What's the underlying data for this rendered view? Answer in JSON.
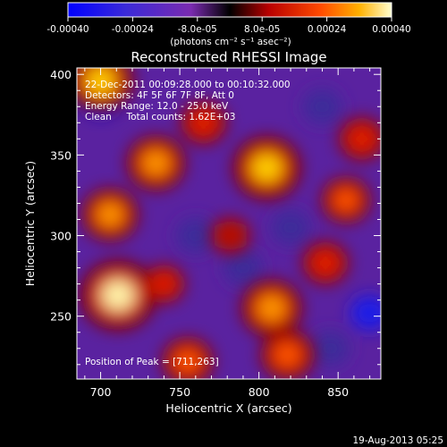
{
  "chart_data": {
    "type": "heatmap",
    "title": "Reconstructed RHESSI Image",
    "xlabel": "Heliocentric X (arcsec)",
    "ylabel": "Heliocentric Y (arcsec)",
    "xlim": [
      685,
      877
    ],
    "ylim": [
      211,
      404
    ],
    "xticks": [
      700,
      750,
      800,
      850
    ],
    "yticks": [
      250,
      300,
      350,
      400
    ],
    "annotations": [
      "22-Dec-2011 00:09:28.000 to 00:10:32.000",
      "Detectors: 4F 5F 6F 7F 8F, Att 0",
      "Energy Range: 12.0 - 25.0 keV",
      "Clean     Total counts: 1.62E+03"
    ],
    "peak_label": "Position of Peak = [711,263]",
    "footer": "19-Aug-2013 05:25",
    "colorbar": {
      "ticks": [
        "-0.00040",
        "-0.00024",
        "-8.0e-05",
        "8.0e-05",
        "0.00024",
        "0.00040"
      ],
      "units": "(photons cm⁻² s⁻¹ asec⁻²)",
      "range": [
        -0.0004,
        0.0004
      ]
    },
    "sources": [
      {
        "x": 711,
        "y": 263,
        "value": 0.00036
      },
      {
        "x": 805,
        "y": 342,
        "value": 0.0003
      },
      {
        "x": 700,
        "y": 396,
        "value": 0.00028
      },
      {
        "x": 735,
        "y": 345,
        "value": 0.00022
      },
      {
        "x": 808,
        "y": 255,
        "value": 0.00024
      },
      {
        "x": 706,
        "y": 313,
        "value": 0.0002
      },
      {
        "x": 765,
        "y": 370,
        "value": 0.00012
      },
      {
        "x": 855,
        "y": 322,
        "value": 0.00014
      },
      {
        "x": 865,
        "y": 360,
        "value": 0.00012
      },
      {
        "x": 818,
        "y": 226,
        "value": 0.00018
      },
      {
        "x": 755,
        "y": 222,
        "value": 0.00016
      },
      {
        "x": 842,
        "y": 283,
        "value": 0.00012
      },
      {
        "x": 740,
        "y": 270,
        "value": 8e-05
      },
      {
        "x": 782,
        "y": 300,
        "value": 6e-05
      }
    ],
    "negative_regions": [
      {
        "x": 700,
        "y": 385,
        "value": -0.00025
      },
      {
        "x": 870,
        "y": 252,
        "value": -0.0003
      },
      {
        "x": 790,
        "y": 280,
        "value": -8e-05
      },
      {
        "x": 760,
        "y": 300,
        "value": -0.0001
      },
      {
        "x": 840,
        "y": 380,
        "value": -0.00012
      },
      {
        "x": 820,
        "y": 305,
        "value": -0.0001
      },
      {
        "x": 845,
        "y": 230,
        "value": -8e-05
      }
    ]
  }
}
